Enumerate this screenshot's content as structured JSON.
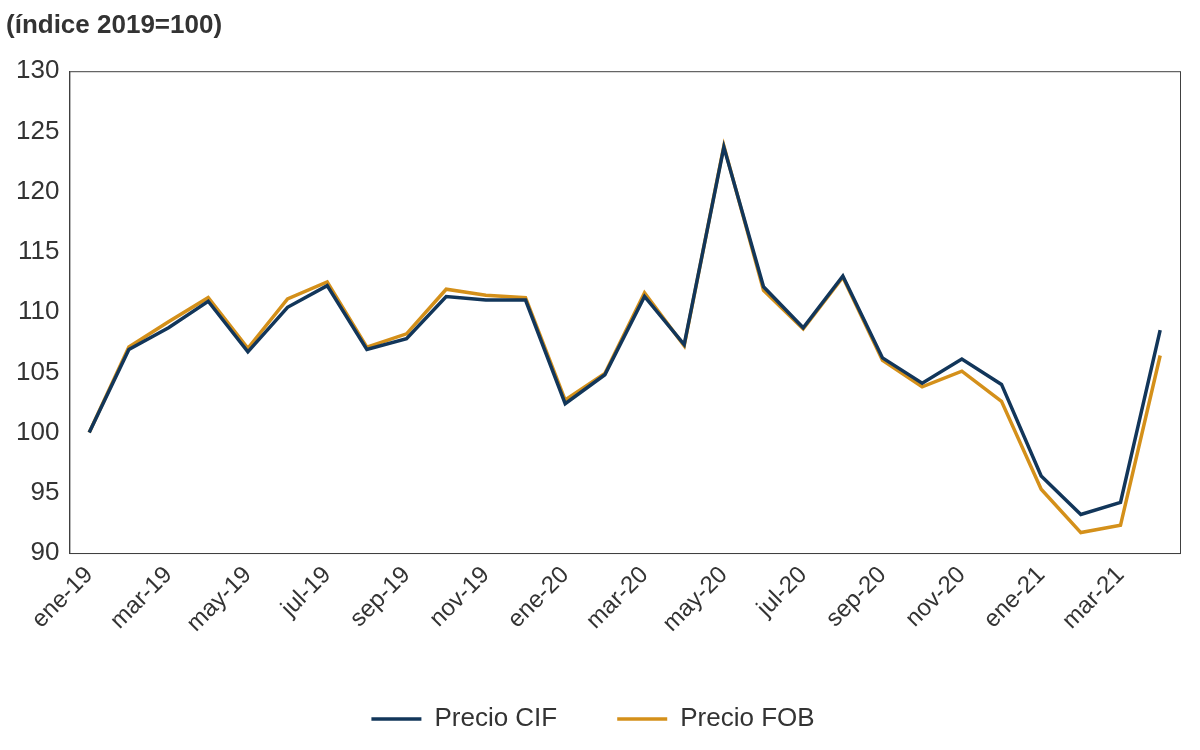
{
  "chart_data": {
    "type": "line",
    "ylabel": "(índice 2019=100)",
    "categories": [
      "ene-19",
      null,
      "mar-19",
      null,
      "may-19",
      null,
      "jul-19",
      null,
      "sep-19",
      null,
      "nov-19",
      null,
      "ene-20",
      null,
      "mar-20",
      null,
      "may-20",
      null,
      "jul-20",
      null,
      "sep-20",
      null,
      "nov-20",
      null,
      "ene-21",
      null,
      "mar-21",
      null
    ],
    "series": [
      {
        "name": "Precio CIF",
        "color": "#12365a",
        "values": [
          100,
          106.9,
          108.7,
          110.9,
          106.7,
          110.4,
          112.2,
          106.9,
          107.8,
          111.3,
          111.0,
          111.0,
          102.4,
          104.8,
          111.3,
          107.3,
          123.7,
          112.1,
          108.7,
          113.0,
          106.2,
          104.1,
          106.1,
          104.0,
          96.4,
          93.2,
          94.2,
          108.5
        ]
      },
      {
        "name": "Precio FOB",
        "color": "#d4901a",
        "values": [
          100,
          107.1,
          109.2,
          111.2,
          107.0,
          111.1,
          112.5,
          107.1,
          108.2,
          111.9,
          111.4,
          111.2,
          102.7,
          104.9,
          111.6,
          107.2,
          123.8,
          111.8,
          108.6,
          112.9,
          106.0,
          103.8,
          105.1,
          102.6,
          95.3,
          91.7,
          92.3,
          106.4
        ]
      }
    ],
    "ylim": [
      90,
      130
    ],
    "yticks": [
      90,
      95,
      100,
      105,
      110,
      115,
      120,
      125,
      130
    ],
    "grid": false,
    "legend": "bottom"
  }
}
